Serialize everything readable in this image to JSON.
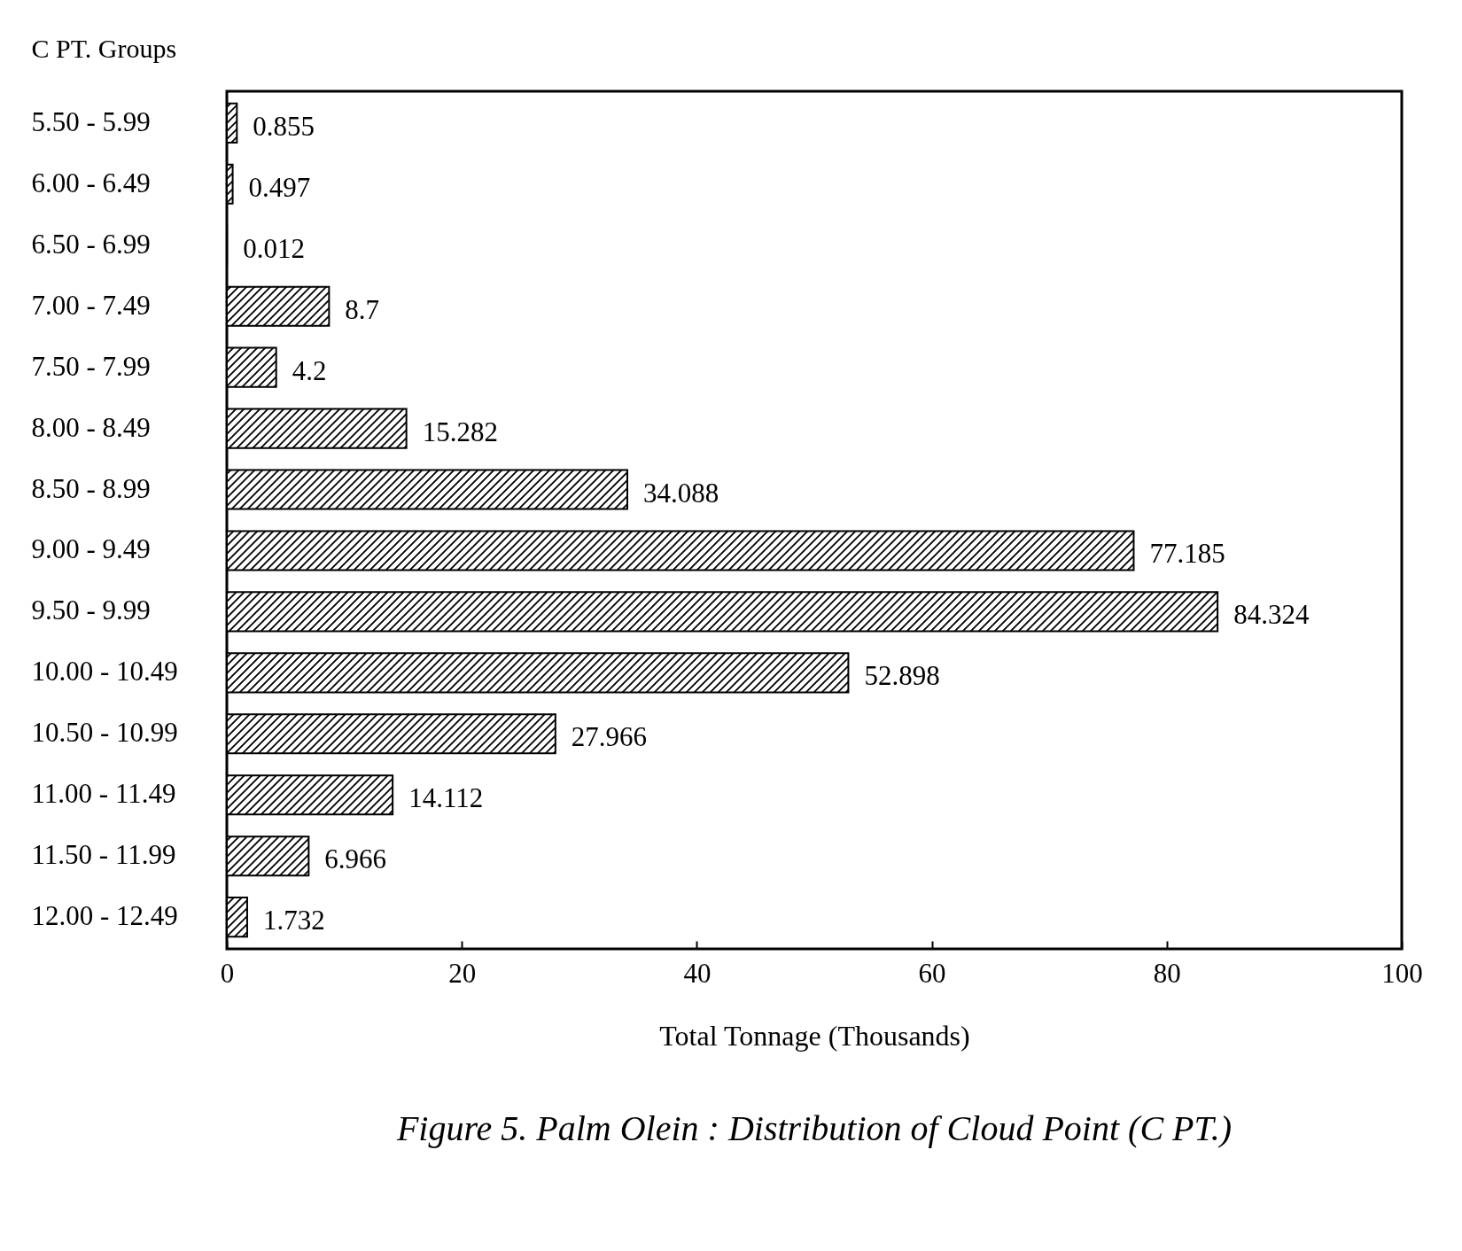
{
  "chart_data": {
    "type": "bar",
    "orientation": "horizontal",
    "title": "Figure 5. Palm Olein : Distribution of Cloud Point (C PT.)",
    "xlabel": "Total Tonnage (Thousands)",
    "ylabel": "C PT. Groups",
    "categories": [
      "5.50 - 5.99",
      "6.00 - 6.49",
      "6.50 - 6.99",
      "7.00 - 7.49",
      "7.50 - 7.99",
      "8.00 - 8.49",
      "8.50 - 8.99",
      "9.00 - 9.49",
      "9.50 - 9.99",
      "10.00 - 10.49",
      "10.50 - 10.99",
      "11.00 - 11.49",
      "11.50 - 11.99",
      "12.00 - 12.49"
    ],
    "values": [
      0.855,
      0.497,
      0.012,
      8.7,
      4.2,
      15.282,
      34.088,
      77.185,
      84.324,
      52.898,
      27.966,
      14.112,
      6.966,
      1.732
    ],
    "color": "#000000",
    "xlim": [
      0,
      100
    ],
    "xticks": [
      0,
      20,
      40,
      60,
      80,
      100
    ],
    "data_labels": true
  }
}
